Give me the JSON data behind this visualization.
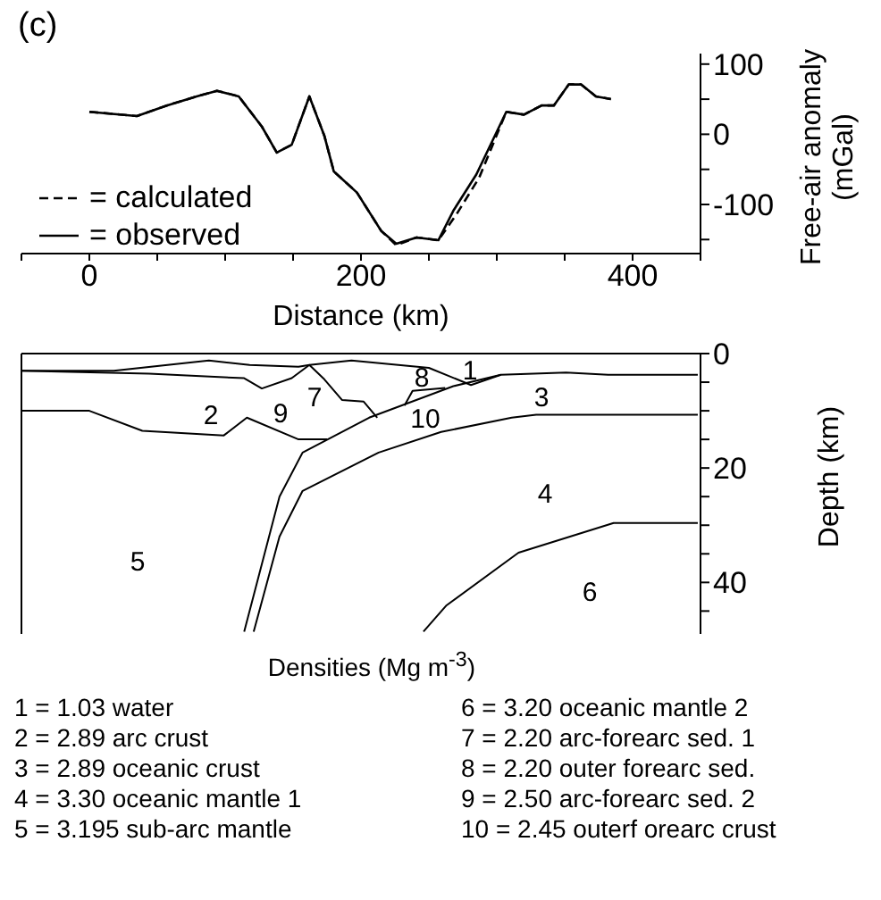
{
  "chart_data": [
    {
      "type": "line",
      "title": "(c)",
      "xlabel": "Distance (km)",
      "ylabel": "Free-air anomaly (mGal)",
      "xlim": [
        -50,
        450
      ],
      "ylim": [
        -170,
        115
      ],
      "xticks": [
        {
          "value": -50,
          "label": null
        },
        0,
        {
          "value": 50,
          "label": null
        },
        {
          "value": 100,
          "label": null
        },
        {
          "value": 150,
          "label": null
        },
        200,
        {
          "value": 250,
          "label": null
        },
        {
          "value": 300,
          "label": null
        },
        {
          "value": 350,
          "label": null
        },
        400,
        {
          "value": 450,
          "label": null
        }
      ],
      "yticks": [
        100,
        {
          "value": 50,
          "label": null
        },
        0,
        {
          "value": -50,
          "label": null
        },
        -100,
        {
          "value": -150,
          "label": null
        }
      ],
      "grid": false,
      "marker": "none",
      "legend": "bottom left",
      "series": [
        {
          "name": "= calculated",
          "color": "#000000",
          "line_style": "dashed",
          "x": [
            0,
            35,
            57,
            79,
            94,
            110,
            127,
            138,
            149,
            162,
            173,
            180,
            197,
            215,
            226,
            241,
            257,
            270,
            287,
            307,
            320,
            333,
            342,
            353,
            362,
            373,
            384
          ],
          "values": [
            32,
            26,
            41,
            54,
            62,
            54,
            11,
            -26,
            -15,
            54,
            -2,
            -53,
            -83,
            -138,
            -158,
            -147,
            -151,
            -115,
            -62,
            32,
            28,
            41,
            41,
            71,
            71,
            54,
            50
          ]
        },
        {
          "name": "= observed",
          "color": "#000000",
          "line_style": "solid",
          "x": [
            0,
            35,
            57,
            79,
            94,
            110,
            127,
            138,
            149,
            162,
            173,
            180,
            197,
            215,
            226,
            241,
            257,
            268,
            285,
            307,
            320,
            333,
            342,
            353,
            362,
            373,
            384
          ],
          "values": [
            32,
            26,
            41,
            54,
            62,
            54,
            11,
            -26,
            -15,
            54,
            -2,
            -53,
            -83,
            -138,
            -156,
            -147,
            -151,
            -109,
            -57,
            32,
            28,
            41,
            41,
            71,
            71,
            54,
            50
          ]
        }
      ]
    },
    {
      "type": "line",
      "ylabel": "Depth (km)",
      "xlim": [
        -50,
        450
      ],
      "ylim": [
        49,
        0
      ],
      "tick_labels": "y",
      "yticks": [
        0,
        {
          "value": 5,
          "label": null
        },
        {
          "value": 10,
          "label": null
        },
        {
          "value": 15,
          "label": null
        },
        20,
        {
          "value": 25,
          "label": null
        },
        {
          "value": 30,
          "label": null
        },
        {
          "value": 35,
          "label": null
        },
        40,
        {
          "value": 45,
          "label": null
        }
      ],
      "grid": false,
      "marker": "none",
      "legend": false,
      "series": [
        {
          "color": "#000000",
          "x": [
            -50,
            18,
            88,
            118,
            154,
            162,
            193,
            250,
            281,
            303,
            351,
            382,
            448
          ],
          "values": [
            3.0,
            3.0,
            1.2,
            2.0,
            2.3,
            2.0,
            1.2,
            2.5,
            5.5,
            3.7,
            3.3,
            3.7,
            3.7
          ]
        },
        {
          "color": "#000000",
          "x": [
            -50,
            44,
            114,
            127,
            149,
            162,
            173,
            186,
            202,
            212
          ],
          "values": [
            3.0,
            3.5,
            4.3,
            6.1,
            4.3,
            2.0,
            4.5,
            8.1,
            8.4,
            11.2
          ]
        },
        {
          "color": "#000000",
          "x": [
            232,
            238,
            262
          ],
          "values": [
            9.1,
            6.5,
            6.0
          ]
        },
        {
          "color": "#000000",
          "x": [
            -50,
            0,
            39,
            99,
            116,
            154,
            175
          ],
          "values": [
            10,
            10,
            13.5,
            14.3,
            11.2,
            15,
            15
          ]
        },
        {
          "color": "#000000",
          "x": [
            114,
            140,
            157,
            206,
            268,
            303
          ],
          "values": [
            48.6,
            25,
            17.3,
            11.2,
            5.7,
            3.7
          ]
        },
        {
          "color": "#000000",
          "x": [
            121,
            140,
            157,
            213,
            259,
            311,
            329,
            448
          ],
          "values": [
            48.6,
            32,
            24,
            17.3,
            13.7,
            11.2,
            10.7,
            10.7
          ]
        },
        {
          "color": "#000000",
          "x": [
            246,
            263,
            316,
            386,
            448
          ],
          "values": [
            48.6,
            44,
            34.8,
            29.6,
            29.6
          ]
        }
      ],
      "annotations": [
        "1",
        "8",
        "3",
        "2",
        "9",
        "7",
        "10",
        "4",
        "5",
        "6",
        "Densities (Mg m$^{-3}$)",
        "1 = 1.03 water",
        "2 = 2.89 arc crust",
        "3 = 2.89 oceanic crust",
        "4 = 3.30 oceanic mantle 1",
        "5 = 3.195 sub-arc mantle",
        "6 = 3.20 oceanic mantle 2",
        "7 = 2.20 arc-forearc sed. 1",
        "8 = 2.20 outer forearc sed.",
        "9 = 2.50 arc-forearc sed. 2",
        "10 = 2.45 outerf orearc crust"
      ]
    }
  ]
}
